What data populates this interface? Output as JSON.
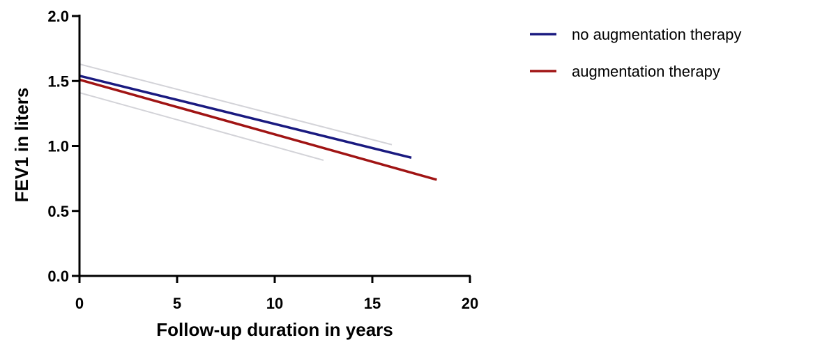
{
  "chart_data": {
    "type": "line",
    "title": "",
    "xlabel": "Follow-up duration in years",
    "ylabel": "FEV1 in liters",
    "xlim": [
      0,
      20
    ],
    "ylim": [
      0,
      2.0
    ],
    "x_ticks": [
      0,
      5,
      10,
      15,
      20
    ],
    "x_tick_labels": [
      "0",
      "5",
      "10",
      "15",
      "20"
    ],
    "y_ticks": [
      0,
      0.5,
      1.0,
      1.5,
      2.0
    ],
    "y_tick_labels": [
      "0.0",
      "0.5",
      "1.0",
      "1.5",
      "2.0"
    ],
    "grid": false,
    "legend_position": "top-right",
    "series": [
      {
        "name": "no augmentation therapy",
        "color": "#1a1a80",
        "x": [
          0,
          17
        ],
        "y": [
          1.54,
          0.91
        ]
      },
      {
        "name": "augmentation therapy",
        "color": "#a01414",
        "x": [
          0,
          18.3
        ],
        "y": [
          1.51,
          0.74
        ]
      }
    ],
    "confidence_band": {
      "color": "#d3d3d8",
      "upper": {
        "x": [
          0,
          16
        ],
        "y": [
          1.63,
          1.01
        ]
      },
      "lower": {
        "x": [
          0,
          12.5
        ],
        "y": [
          1.41,
          0.89
        ]
      }
    }
  }
}
